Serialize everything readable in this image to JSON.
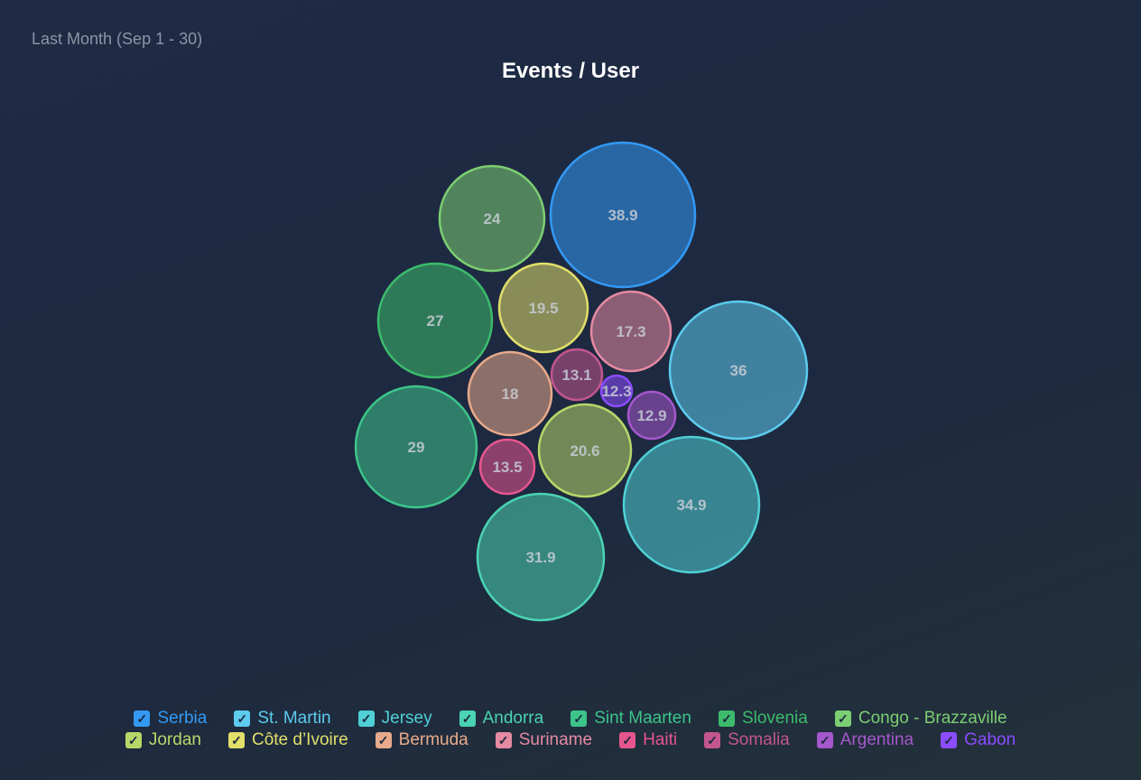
{
  "subtitle": "Last Month (Sep 1 - 30)",
  "chart_data": {
    "type": "bubble",
    "title": "Events / User",
    "legend_position": "bottom",
    "series": [
      {
        "name": "Serbia",
        "value": 38.9,
        "color": "#3399f5"
      },
      {
        "name": "St. Martin",
        "value": 36,
        "color": "#5ccbee"
      },
      {
        "name": "Jersey",
        "value": 34.9,
        "color": "#4fcfd6"
      },
      {
        "name": "Andorra",
        "value": 31.9,
        "color": "#4bd3b3"
      },
      {
        "name": "Sint Maarten",
        "value": 29,
        "color": "#3dc48a"
      },
      {
        "name": "Slovenia",
        "value": 27,
        "color": "#3cbb6c"
      },
      {
        "name": "Congo - Brazzaville",
        "value": 24,
        "color": "#7cce72"
      },
      {
        "name": "Jordan",
        "value": 20.6,
        "color": "#b6d86a"
      },
      {
        "name": "Côte d’Ivoire",
        "value": 19.5,
        "color": "#e2df6a"
      },
      {
        "name": "Bermuda",
        "value": 18,
        "color": "#e8aa8a"
      },
      {
        "name": "Suriname",
        "value": 17.3,
        "color": "#e58aa1"
      },
      {
        "name": "Haiti",
        "value": 13.5,
        "color": "#e6568e"
      },
      {
        "name": "Somalia",
        "value": 13.1,
        "color": "#c3568f"
      },
      {
        "name": "Argentina",
        "value": 12.9,
        "color": "#a557cc"
      },
      {
        "name": "Gabon",
        "value": 12.3,
        "color": "#8b4cff"
      }
    ]
  }
}
